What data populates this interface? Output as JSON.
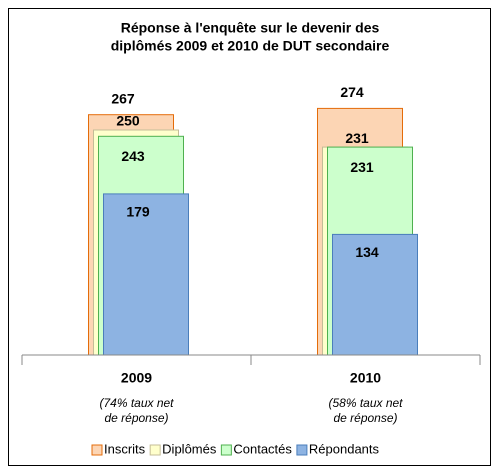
{
  "chart_data": {
    "type": "overlapping-bar",
    "title": [
      "Réponse à l'enquête sur le devenir des",
      "diplômés  2009 et 2010 de DUT secondaire"
    ],
    "categories": [
      "2009",
      "2010"
    ],
    "annotations": [
      [
        "(74% taux net",
        "de réponse)"
      ],
      [
        "(58% taux net",
        "de réponse)"
      ]
    ],
    "series": [
      {
        "name": "Inscrits",
        "color": "#fcd5b4",
        "edge": "#e46c0a",
        "values": [
          267,
          274
        ]
      },
      {
        "name": "Diplômés",
        "color": "#ffffcc",
        "edge": "#c4bd97",
        "values": [
          250,
          231
        ]
      },
      {
        "name": "Contactés",
        "color": "#ccffcc",
        "edge": "#4fb04f",
        "values": [
          243,
          231
        ]
      },
      {
        "name": "Répondants",
        "color": "#8db3e2",
        "edge": "#4a7ebb",
        "values": [
          179,
          134
        ]
      }
    ],
    "ylim": [
      0,
      300
    ],
    "legend": "bottom"
  }
}
